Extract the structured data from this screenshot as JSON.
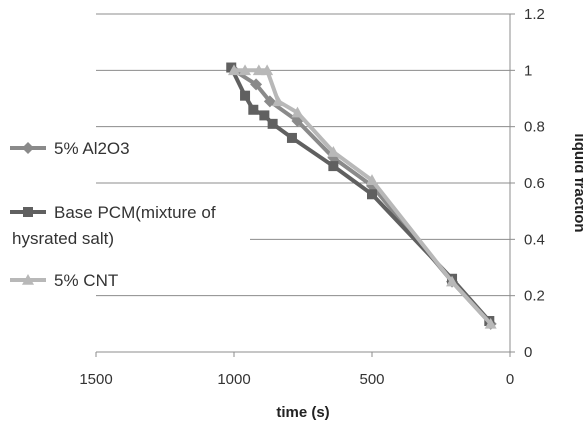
{
  "chart_data": {
    "type": "scatter",
    "title": "",
    "xlabel": "time (s)",
    "ylabel": "liquid fraction",
    "xlim": [
      0,
      1500
    ],
    "x_reversed": true,
    "ylim": [
      0,
      1.2
    ],
    "y_axis_side": "right",
    "grid": "horizontal",
    "legend_position": "left",
    "x_ticks": [
      "1500",
      "1000",
      "500",
      "0"
    ],
    "y_ticks": [
      "0",
      "0.2",
      "0.4",
      "0.6",
      "0.8",
      "1",
      "1.2"
    ],
    "series": [
      {
        "name": "5% Al2O3",
        "marker": "diamond",
        "color": "#8a8a8a",
        "points": [
          [
            1000,
            1.0
          ],
          [
            920,
            0.95
          ],
          [
            870,
            0.89
          ],
          [
            770,
            0.82
          ],
          [
            640,
            0.69
          ],
          [
            500,
            0.59
          ],
          [
            210,
            0.25
          ],
          [
            70,
            0.1
          ]
        ]
      },
      {
        "name": "Base PCM(mixture of hysrated salt)",
        "marker": "square",
        "color": "#606060",
        "points": [
          [
            1010,
            1.01
          ],
          [
            960,
            0.91
          ],
          [
            930,
            0.86
          ],
          [
            890,
            0.84
          ],
          [
            860,
            0.81
          ],
          [
            790,
            0.76
          ],
          [
            640,
            0.66
          ],
          [
            500,
            0.56
          ],
          [
            210,
            0.26
          ],
          [
            75,
            0.11
          ]
        ]
      },
      {
        "name": "5% CNT",
        "marker": "triangle",
        "color": "#b8b8b8",
        "points": [
          [
            1000,
            1.0
          ],
          [
            960,
            1.0
          ],
          [
            910,
            1.0
          ],
          [
            880,
            1.0
          ],
          [
            840,
            0.89
          ],
          [
            770,
            0.85
          ],
          [
            640,
            0.71
          ],
          [
            500,
            0.61
          ],
          [
            210,
            0.25
          ],
          [
            70,
            0.1
          ]
        ]
      }
    ]
  }
}
